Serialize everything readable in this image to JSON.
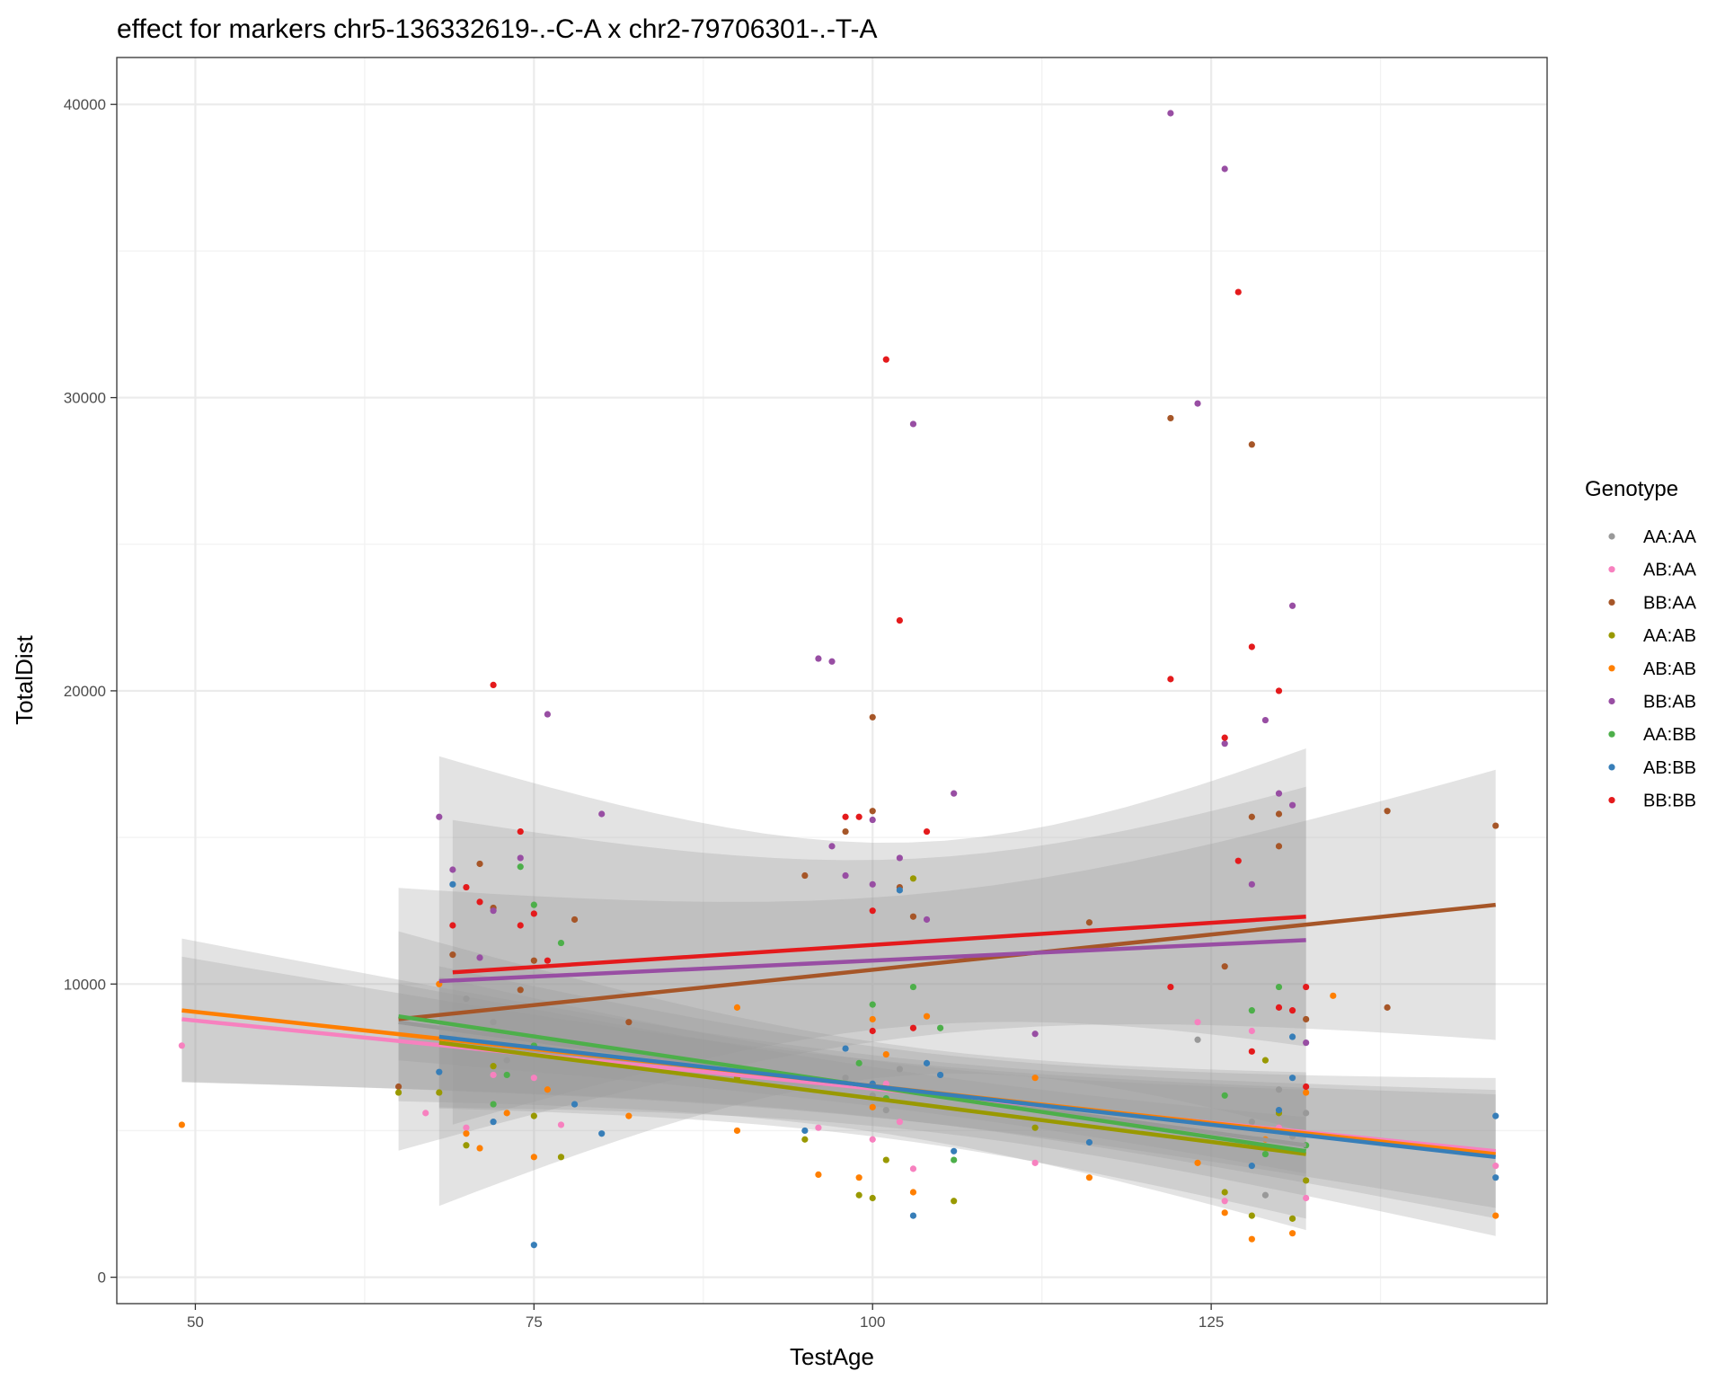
{
  "chart_data": {
    "type": "scatter",
    "title": "effect for markers chr5-136332619-.-C-A x chr2-79706301-.-T-A",
    "xlabel": "TestAge",
    "ylabel": "TotalDist",
    "xlim": [
      44.2,
      149.8
    ],
    "ylim": [
      -900,
      41600
    ],
    "x_ticks": [
      50,
      75,
      100,
      125
    ],
    "y_ticks": [
      0,
      10000,
      20000,
      30000,
      40000
    ],
    "grid": true,
    "legend_title": "Genotype",
    "legend_position": "right",
    "series": [
      {
        "name": "AA:AA",
        "color": "#999999",
        "points": [
          [
            70,
            9500
          ],
          [
            72,
            8700
          ],
          [
            73,
            7400
          ],
          [
            75,
            8200
          ],
          [
            98,
            6800
          ],
          [
            100,
            6200
          ],
          [
            101,
            5700
          ],
          [
            102,
            7100
          ],
          [
            124,
            8100
          ],
          [
            127,
            4600
          ],
          [
            128,
            5300
          ],
          [
            129,
            2800
          ],
          [
            130,
            6400
          ],
          [
            131,
            4800
          ],
          [
            132,
            5600
          ]
        ],
        "fit": {
          "x0": 65,
          "y0": 8700,
          "x1": 132,
          "y1": 4500
        }
      },
      {
        "name": "AB:AA",
        "color": "#F781BF",
        "points": [
          [
            49,
            7900
          ],
          [
            67,
            5600
          ],
          [
            70,
            5100
          ],
          [
            72,
            6900
          ],
          [
            75,
            6800
          ],
          [
            77,
            5200
          ],
          [
            96,
            5100
          ],
          [
            100,
            4700
          ],
          [
            101,
            6600
          ],
          [
            102,
            5300
          ],
          [
            103,
            3700
          ],
          [
            112,
            3900
          ],
          [
            124,
            8700
          ],
          [
            126,
            2600
          ],
          [
            128,
            8400
          ],
          [
            130,
            5100
          ],
          [
            132,
            2700
          ],
          [
            146,
            3800
          ]
        ],
        "fit": {
          "x0": 49,
          "y0": 8800,
          "x1": 146,
          "y1": 4300
        }
      },
      {
        "name": "BB:AA",
        "color": "#A65628",
        "points": [
          [
            65,
            6500
          ],
          [
            69,
            11000
          ],
          [
            71,
            14100
          ],
          [
            72,
            12600
          ],
          [
            74,
            9800
          ],
          [
            75,
            10800
          ],
          [
            78,
            12200
          ],
          [
            82,
            8700
          ],
          [
            95,
            13700
          ],
          [
            98,
            15200
          ],
          [
            100,
            19100
          ],
          [
            100,
            15900
          ],
          [
            102,
            13300
          ],
          [
            103,
            12300
          ],
          [
            116,
            12100
          ],
          [
            122,
            29300
          ],
          [
            126,
            10600
          ],
          [
            128,
            28400
          ],
          [
            128,
            15700
          ],
          [
            130,
            14700
          ],
          [
            130,
            15800
          ],
          [
            132,
            8800
          ],
          [
            138,
            15900
          ],
          [
            138,
            9200
          ],
          [
            146,
            15400
          ]
        ],
        "fit": {
          "x0": 65,
          "y0": 8800,
          "x1": 146,
          "y1": 12700
        }
      },
      {
        "name": "AA:AB",
        "color": "#999900",
        "points": [
          [
            65,
            6300
          ],
          [
            68,
            6300
          ],
          [
            70,
            4500
          ],
          [
            72,
            7200
          ],
          [
            75,
            5500
          ],
          [
            77,
            4100
          ],
          [
            90,
            6800
          ],
          [
            95,
            4700
          ],
          [
            99,
            2800
          ],
          [
            100,
            2700
          ],
          [
            101,
            4000
          ],
          [
            103,
            13600
          ],
          [
            106,
            2600
          ],
          [
            112,
            5100
          ],
          [
            126,
            2900
          ],
          [
            128,
            2100
          ],
          [
            129,
            7400
          ],
          [
            130,
            5600
          ],
          [
            131,
            2000
          ],
          [
            132,
            3300
          ]
        ],
        "fit": {
          "x0": 68,
          "y0": 8000,
          "x1": 132,
          "y1": 4200
        }
      },
      {
        "name": "AB:AB",
        "color": "#FF7F00",
        "points": [
          [
            49,
            5200
          ],
          [
            68,
            10000
          ],
          [
            70,
            4900
          ],
          [
            71,
            4400
          ],
          [
            73,
            5600
          ],
          [
            75,
            4100
          ],
          [
            76,
            6400
          ],
          [
            82,
            5500
          ],
          [
            90,
            5000
          ],
          [
            90,
            9200
          ],
          [
            96,
            3500
          ],
          [
            99,
            3400
          ],
          [
            100,
            8800
          ],
          [
            100,
            5800
          ],
          [
            101,
            7600
          ],
          [
            103,
            2900
          ],
          [
            104,
            8900
          ],
          [
            112,
            6800
          ],
          [
            116,
            3400
          ],
          [
            124,
            3900
          ],
          [
            126,
            2200
          ],
          [
            128,
            1300
          ],
          [
            129,
            4700
          ],
          [
            131,
            1500
          ],
          [
            132,
            6300
          ],
          [
            134,
            9600
          ],
          [
            146,
            2100
          ]
        ],
        "fit": {
          "x0": 49,
          "y0": 9100,
          "x1": 146,
          "y1": 4200
        }
      },
      {
        "name": "BB:AB",
        "color": "#984EA3",
        "points": [
          [
            68,
            15700
          ],
          [
            69,
            13900
          ],
          [
            71,
            10900
          ],
          [
            72,
            12500
          ],
          [
            74,
            14300
          ],
          [
            76,
            19200
          ],
          [
            80,
            15800
          ],
          [
            96,
            21100
          ],
          [
            97,
            21000
          ],
          [
            97,
            14700
          ],
          [
            98,
            13700
          ],
          [
            100,
            15600
          ],
          [
            100,
            13400
          ],
          [
            102,
            14300
          ],
          [
            103,
            29100
          ],
          [
            104,
            12200
          ],
          [
            106,
            16500
          ],
          [
            112,
            8300
          ],
          [
            122,
            39700
          ],
          [
            124,
            29800
          ],
          [
            126,
            37800
          ],
          [
            126,
            18200
          ],
          [
            128,
            13400
          ],
          [
            129,
            19000
          ],
          [
            130,
            16500
          ],
          [
            131,
            16100
          ],
          [
            131,
            22900
          ],
          [
            132,
            8000
          ]
        ],
        "fit": {
          "x0": 68,
          "y0": 10100,
          "x1": 132,
          "y1": 11500
        }
      },
      {
        "name": "AA:BB",
        "color": "#4DAF4A",
        "points": [
          [
            72,
            5900
          ],
          [
            73,
            6900
          ],
          [
            74,
            14000
          ],
          [
            75,
            12700
          ],
          [
            75,
            7900
          ],
          [
            77,
            11400
          ],
          [
            99,
            7300
          ],
          [
            100,
            9300
          ],
          [
            101,
            6100
          ],
          [
            103,
            9900
          ],
          [
            105,
            8500
          ],
          [
            106,
            4000
          ],
          [
            126,
            6200
          ],
          [
            128,
            9100
          ],
          [
            129,
            4200
          ],
          [
            130,
            9900
          ],
          [
            132,
            4500
          ]
        ],
        "fit": {
          "x0": 65,
          "y0": 8900,
          "x1": 132,
          "y1": 4300
        }
      },
      {
        "name": "AB:BB",
        "color": "#377EB8",
        "points": [
          [
            68,
            7000
          ],
          [
            69,
            13400
          ],
          [
            72,
            5300
          ],
          [
            75,
            1100
          ],
          [
            78,
            5900
          ],
          [
            80,
            4900
          ],
          [
            95,
            5000
          ],
          [
            98,
            7800
          ],
          [
            100,
            6600
          ],
          [
            102,
            13200
          ],
          [
            103,
            2100
          ],
          [
            104,
            7300
          ],
          [
            105,
            6900
          ],
          [
            106,
            4300
          ],
          [
            116,
            4600
          ],
          [
            128,
            3800
          ],
          [
            130,
            5700
          ],
          [
            131,
            6800
          ],
          [
            131,
            8200
          ],
          [
            146,
            5500
          ],
          [
            146,
            3400
          ]
        ],
        "fit": {
          "x0": 68,
          "y0": 8200,
          "x1": 146,
          "y1": 4100
        }
      },
      {
        "name": "BB:BB",
        "color": "#E41A1C",
        "points": [
          [
            69,
            12000
          ],
          [
            70,
            13300
          ],
          [
            71,
            12800
          ],
          [
            72,
            20200
          ],
          [
            74,
            15200
          ],
          [
            74,
            12000
          ],
          [
            75,
            12400
          ],
          [
            76,
            10800
          ],
          [
            98,
            15700
          ],
          [
            99,
            15700
          ],
          [
            100,
            8400
          ],
          [
            100,
            12500
          ],
          [
            101,
            31300
          ],
          [
            102,
            22400
          ],
          [
            103,
            8500
          ],
          [
            104,
            15200
          ],
          [
            122,
            20400
          ],
          [
            122,
            9900
          ],
          [
            126,
            18400
          ],
          [
            127,
            33600
          ],
          [
            127,
            14200
          ],
          [
            128,
            21500
          ],
          [
            128,
            7700
          ],
          [
            130,
            20000
          ],
          [
            130,
            9200
          ],
          [
            131,
            9100
          ],
          [
            132,
            6500
          ],
          [
            132,
            9900
          ]
        ],
        "fit": {
          "x0": 69,
          "y0": 10400,
          "x1": 132,
          "y1": 12300
        }
      }
    ]
  }
}
